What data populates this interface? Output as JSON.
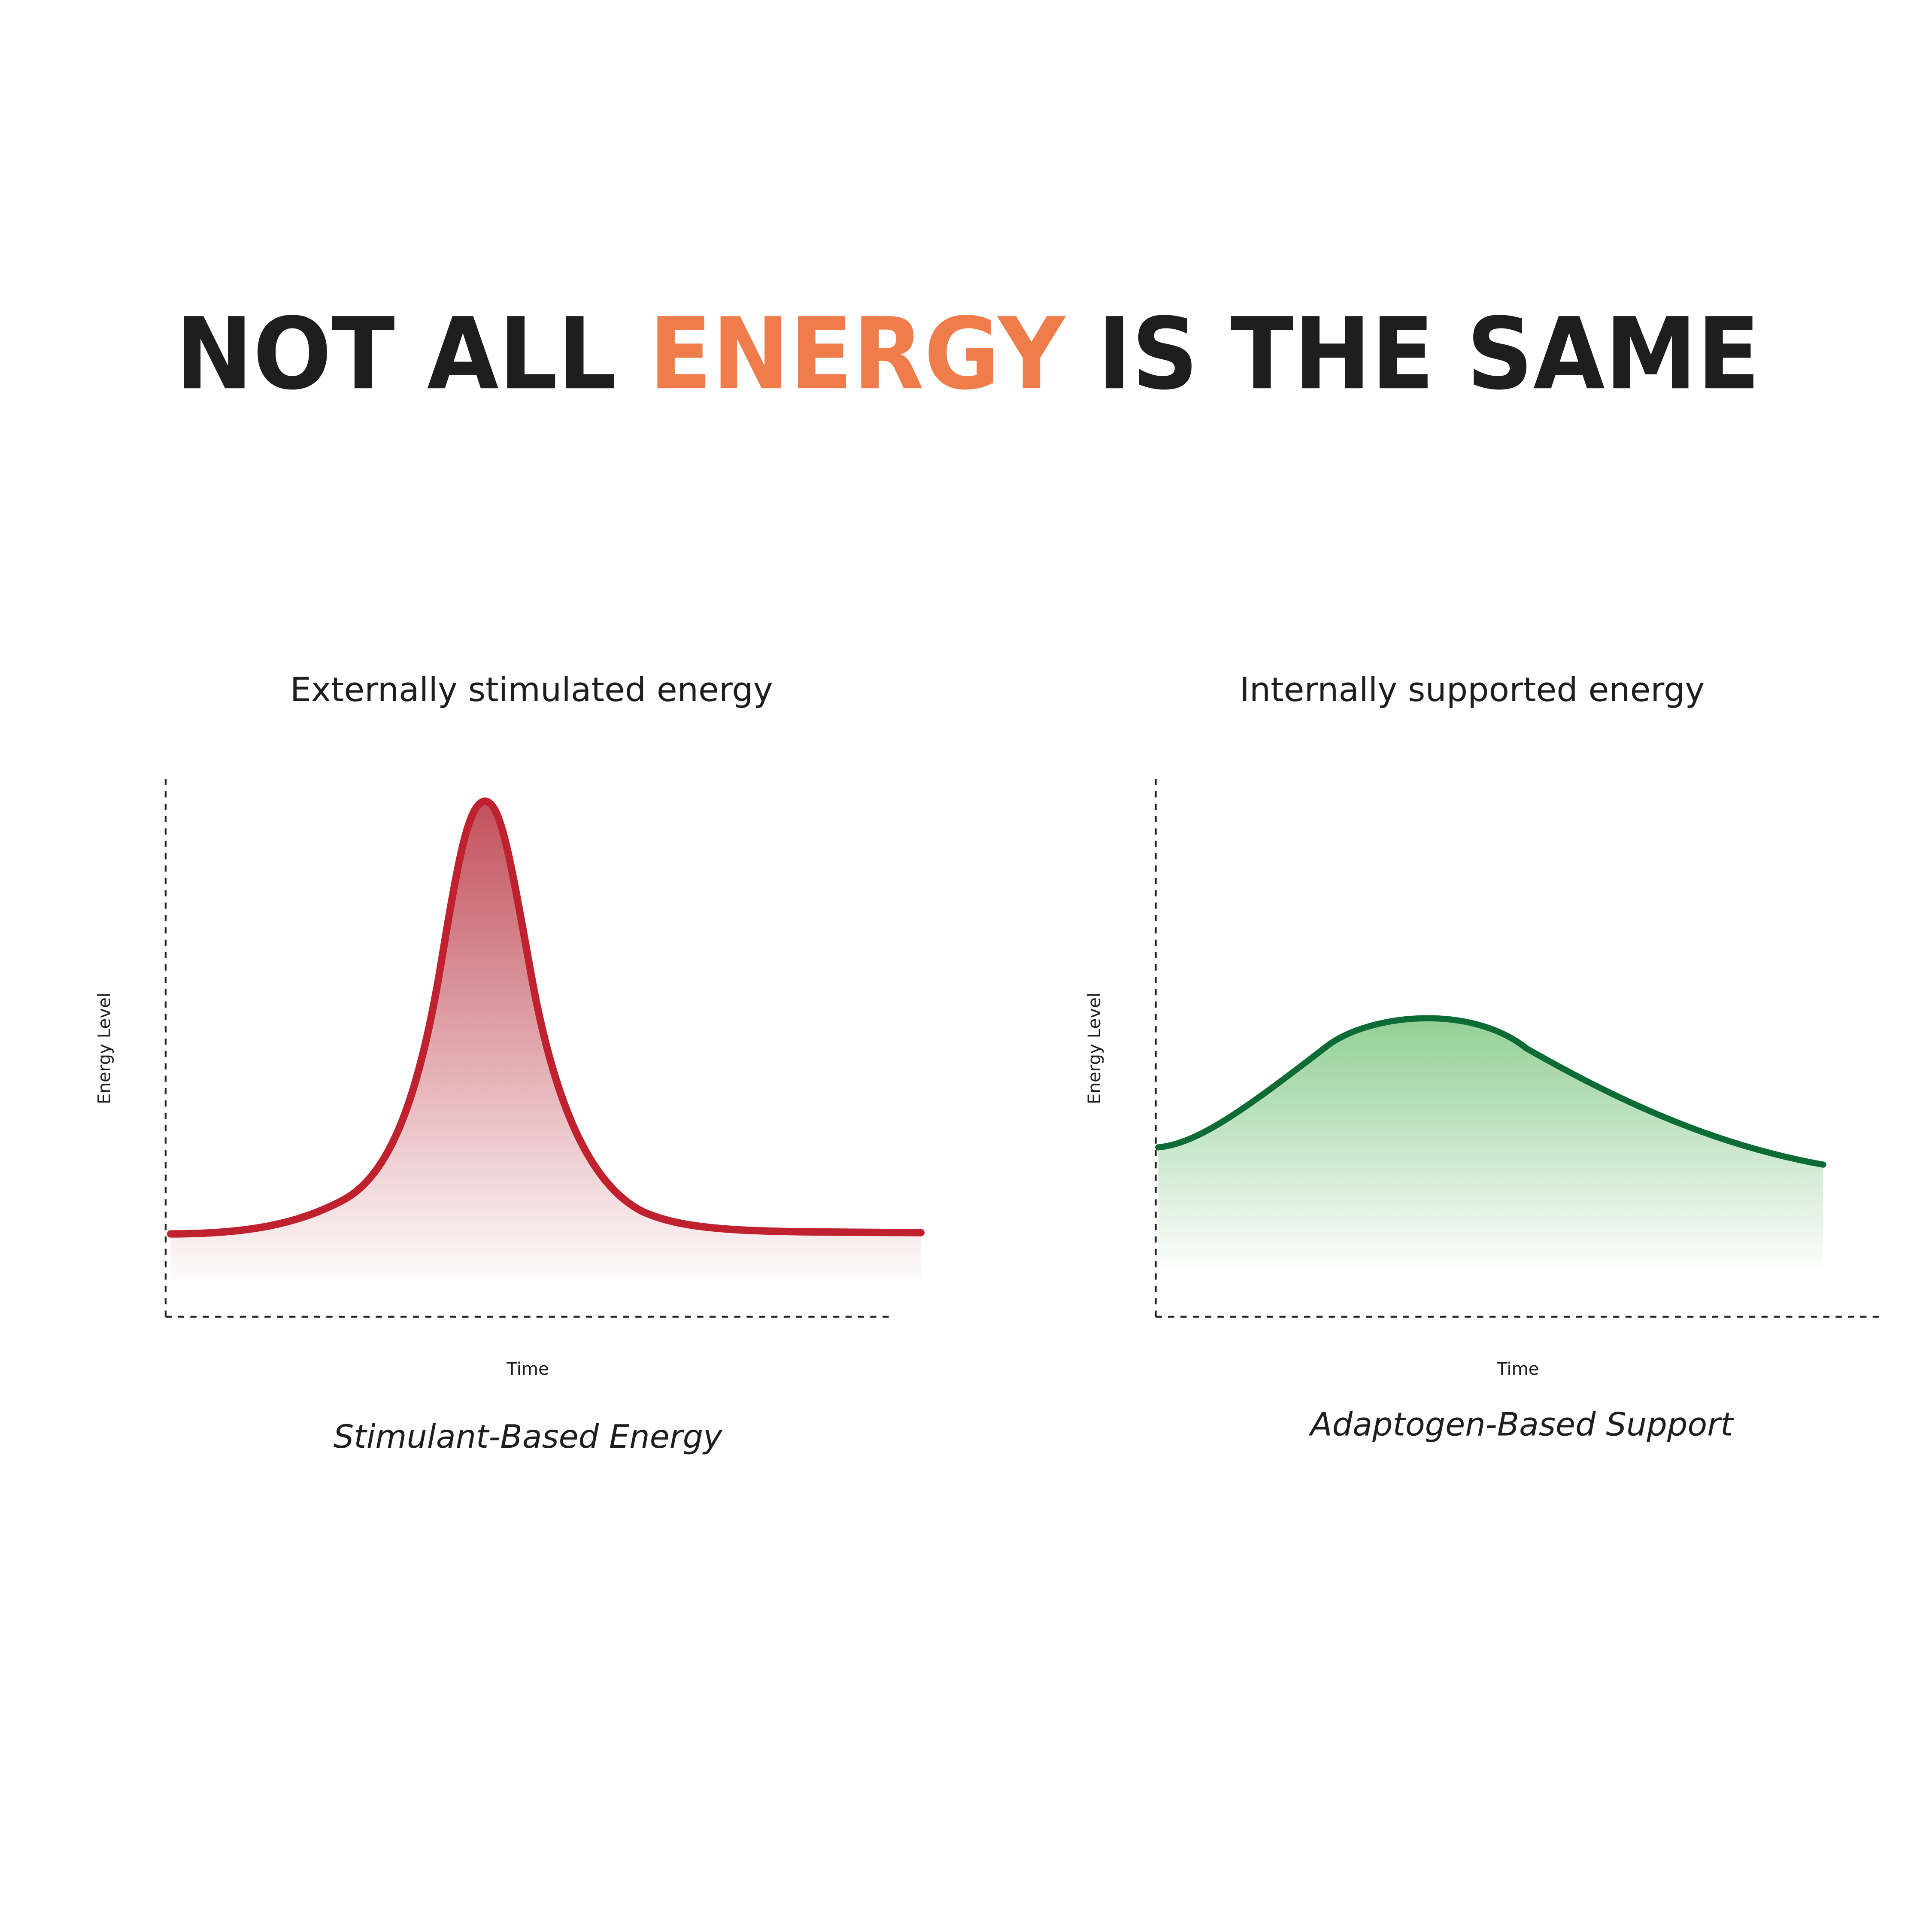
{
  "title": {
    "before": "NOT ALL",
    "highlight": "ENERGY",
    "after": "IS THE SAME"
  },
  "panels": [
    {
      "heading": "Externally stimulated energy",
      "y_label": "Energy Level",
      "x_label": "Time",
      "caption": "Stimulant-Based Energy"
    },
    {
      "heading": "Internally supported energy",
      "y_label": "Energy Level",
      "x_label": "Time",
      "caption": "Adaptogen-Based Support"
    }
  ]
}
